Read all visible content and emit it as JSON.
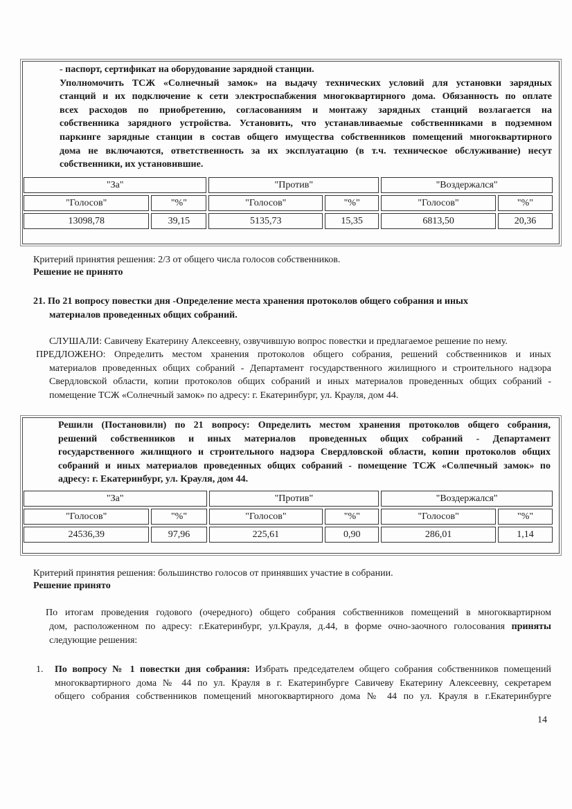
{
  "block1": {
    "lines": [
      "- паспорт, сертификат на оборудование зарядной станции.",
      "Уполномочить ТСЖ «Солнечный замок» на выдачу технических условий для установки зарядных",
      "станций и их подключение к сети электроспабжения многоквартирного дома. Обязанность по оплате",
      "всех расходов по приобретению, согласованиям и монтажу зарядных станций возлагается на",
      "собственника зарядного устройства. Установить, что устанавливаемые собственниками в подземном",
      "паркинге зарядные станции в состав общего имущества собственников помещений многоквартирного",
      "дома не включаются, ответственность за их эксплуатацию (в т.ч. техническое обслуживание) несут",
      "собственники, их установившие."
    ],
    "table": {
      "groups": [
        "\"За\"",
        "\"Против\"",
        "\"Воздержался\""
      ],
      "subheaders": [
        "\"Голосов\"",
        "\"%\"",
        "\"Голосов\"",
        "\"%\"",
        "\"Голосов\"",
        "\"%\""
      ],
      "values": [
        "13098,78",
        "39,15",
        "5135,73",
        "15,35",
        "6813,50",
        "20,36"
      ]
    }
  },
  "criterion1": "Критерий принятия решения: 2/3 от общего числа голосов собственников.",
  "decision1": "Решение не принято",
  "q21": {
    "heading": [
      "21.  По 21 вопросу повестки дня -Определение места хранения протоколов общего собрания и иных",
      "материалов проведенных общих собраний."
    ],
    "heard": "СЛУШАЛИ: Савичеву Екатерину Алексеевну, озвучившую вопрос повестки и предлагаемое решение по нему.",
    "proposed": [
      "ПРЕДЛОЖЕНО: Определить местом хранения протоколов общего собрания, решений собственников и иных",
      "материалов проведенных общих собраний - Департамент государственного жилищного и строительного надзора",
      "Свердловской области, копии протоколов общих собраний и иных материалов проведенных общих собраний -",
      "помещение ТСЖ «Солнечный замок» по адресу: г. Екатеринбург, ул. Крауля, дом 44."
    ]
  },
  "block2": {
    "lines": [
      "Решили (Постановили) по 21 вопросу: Определить местом хранения протоколов общего собрания,",
      "решений собственников и иных материалов проведенных общих собраний - Департамент",
      "государственного жилищного и строительного надзора Свердловской области, копии протоколов общих",
      "собраний и иных материалов проведенных общих собраний - помещение ТСЖ «Солпечный замок» по",
      "адресу: г. Екатеринбург, ул. Крауля, дом 44."
    ],
    "table": {
      "groups": [
        "\"За\"",
        "\"Против\"",
        "\"Воздержался\""
      ],
      "subheaders": [
        "\"Голосов\"",
        "\"%\"",
        "\"Голосов\"",
        "\"%\"",
        "\"Голосов\"",
        "\"%\""
      ],
      "values": [
        "24536,39",
        "97,96",
        "225,61",
        "0,90",
        "286,01",
        "1,14"
      ]
    }
  },
  "criterion2": "Критерий принятия решения: большинство голосов от принявших участие в собрании.",
  "decision2": "Решение принято",
  "summary": {
    "line1": "По итогам проведения годового (очередного) общего собрания собственников помещений в многоквартирном",
    "line2_pre": "дом, расположенном по адресу: г.Екатеринбург, ул.Крауля, д.44, в форме очно-заочного голосования ",
    "line2_bold": "приняты",
    "line3": "следующие решения:"
  },
  "item1": {
    "number": "1.",
    "bold": "По вопросу № 1 повестки дня собрания:",
    "line1_rest": " Избрать председателем общего собрания собственников помещений",
    "line2": "многоквартирного дома № 44 по ул. Крауля в г. Екатеринбурге Савичеву Екатерину Алексеевну, секретарем",
    "line3": "общего собрания собственников помещений многоквартирного дома № 44 по ул. Крауля в г.Екатеринбурге"
  },
  "page_number": "14"
}
